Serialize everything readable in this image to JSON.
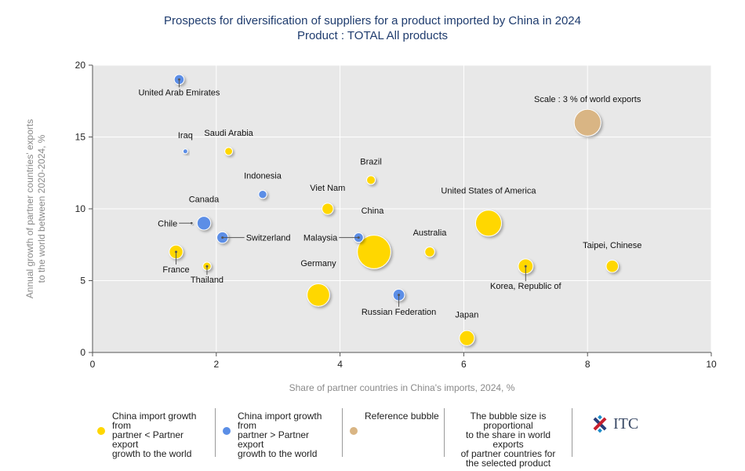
{
  "title_line1": "Prospects for diversification of suppliers for a product imported by China in 2024",
  "title_line2": "Product : TOTAL All products",
  "colors": {
    "yellow": "#ffd700",
    "blue": "#5b8ee6",
    "reference": "#d9b584",
    "plot_bg": "#e8e8e8",
    "title": "#1f3c6e",
    "axis_label": "#8a8a8a"
  },
  "chart_data": {
    "type": "scatter",
    "title": "Prospects for diversification of suppliers for a product imported by China in 2024",
    "subtitle": "Product : TOTAL All products",
    "xlabel": "Share of partner countries in China's imports, 2024, %",
    "ylabel_lines": [
      "Annual growth of partner countries' exports",
      "to the world between 2020-2024, %"
    ],
    "xlim": [
      0,
      10
    ],
    "ylim": [
      0,
      20
    ],
    "x_ticks": [
      0,
      2,
      4,
      6,
      8,
      10
    ],
    "y_ticks": [
      0,
      5,
      10,
      15,
      20
    ],
    "grid": true,
    "points": [
      {
        "name": "United Arab Emirates",
        "x": 1.4,
        "y": 19,
        "group": "blue",
        "size": 1.3
      },
      {
        "name": "Iraq",
        "x": 1.5,
        "y": 14,
        "group": "blue",
        "size": 0.3
      },
      {
        "name": "Saudi Arabia",
        "x": 2.2,
        "y": 14,
        "group": "yellow",
        "size": 0.8
      },
      {
        "name": "Indonesia",
        "x": 2.75,
        "y": 11,
        "group": "blue",
        "size": 0.9
      },
      {
        "name": "Brazil",
        "x": 4.5,
        "y": 12,
        "group": "yellow",
        "size": 1.0
      },
      {
        "name": "Viet Nam",
        "x": 3.8,
        "y": 10,
        "group": "yellow",
        "size": 1.7
      },
      {
        "name": "Canada",
        "x": 1.8,
        "y": 9,
        "group": "blue",
        "size": 2.5
      },
      {
        "name": "Chile",
        "x": 1.6,
        "y": 9,
        "group": "yellow",
        "size": 0.1
      },
      {
        "name": "Switzerland",
        "x": 2.1,
        "y": 8,
        "group": "blue",
        "size": 1.7
      },
      {
        "name": "Malaysia",
        "x": 4.3,
        "y": 8,
        "group": "blue",
        "size": 1.2
      },
      {
        "name": "China",
        "x": 4.55,
        "y": 7,
        "group": "yellow",
        "size": 15.0
      },
      {
        "name": "Australia",
        "x": 5.45,
        "y": 7,
        "group": "yellow",
        "size": 1.3
      },
      {
        "name": "United States of America",
        "x": 6.4,
        "y": 9,
        "group": "yellow",
        "size": 9.0
      },
      {
        "name": "France",
        "x": 1.35,
        "y": 7,
        "group": "yellow",
        "size": 2.5
      },
      {
        "name": "Thailand",
        "x": 1.85,
        "y": 6,
        "group": "yellow",
        "size": 0.9
      },
      {
        "name": "Germany",
        "x": 3.65,
        "y": 4,
        "group": "yellow",
        "size": 6.8
      },
      {
        "name": "Russian Federation",
        "x": 4.95,
        "y": 4,
        "group": "blue",
        "size": 1.8
      },
      {
        "name": "Korea, Republic of",
        "x": 7.0,
        "y": 6,
        "group": "yellow",
        "size": 2.9
      },
      {
        "name": "Taipei, Chinese",
        "x": 8.4,
        "y": 6,
        "group": "yellow",
        "size": 2.0
      },
      {
        "name": "Japan",
        "x": 6.05,
        "y": 1,
        "group": "yellow",
        "size": 3.0
      }
    ],
    "reference_bubble": {
      "label": "Scale : 3 % of world exports",
      "x": 8.0,
      "y": 16,
      "size": 3.0
    }
  },
  "legend": {
    "yellow_label": [
      "China import growth from",
      "partner < Partner export",
      "growth to the world"
    ],
    "blue_label": [
      "China import growth from",
      "partner > Partner export",
      "growth to the world"
    ],
    "reference_label": "Reference bubble",
    "note": [
      "The bubble size is proportional",
      "to the share in world exports",
      "of partner countries for",
      "the selected product"
    ]
  },
  "logo_text": "ITC"
}
